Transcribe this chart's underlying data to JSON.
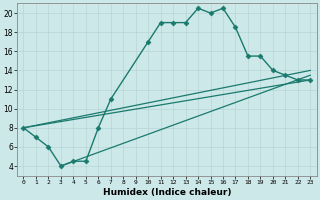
{
  "xlabel": "Humidex (Indice chaleur)",
  "background_color": "#cde8e8",
  "line_color": "#1a7a6e",
  "xlim": [
    -0.5,
    23.5
  ],
  "ylim": [
    3,
    21
  ],
  "yticks": [
    4,
    6,
    8,
    10,
    12,
    14,
    16,
    18,
    20
  ],
  "xticks": [
    0,
    1,
    2,
    3,
    4,
    5,
    6,
    7,
    8,
    9,
    10,
    11,
    12,
    13,
    14,
    15,
    16,
    17,
    18,
    19,
    20,
    21,
    22,
    23
  ],
  "series": [
    {
      "x": [
        0,
        1,
        2,
        3,
        4,
        5,
        6,
        7,
        10,
        11,
        12,
        13,
        14,
        15,
        16,
        17,
        18,
        19,
        20,
        21,
        22,
        23
      ],
      "y": [
        8,
        7,
        6,
        4,
        4.5,
        4.5,
        8,
        11,
        17,
        19,
        19,
        19,
        20.5,
        20,
        20.5,
        18.5,
        15.5,
        15.5,
        14,
        13.5,
        13,
        13
      ],
      "marker": "D",
      "markersize": 2.5,
      "linewidth": 1.0
    },
    {
      "x": [
        0,
        23
      ],
      "y": [
        8,
        14
      ],
      "marker": null,
      "linewidth": 0.9
    },
    {
      "x": [
        0,
        23
      ],
      "y": [
        8,
        13
      ],
      "marker": null,
      "linewidth": 0.9
    },
    {
      "x": [
        3,
        23
      ],
      "y": [
        4,
        13.5
      ],
      "marker": null,
      "linewidth": 0.9
    }
  ]
}
